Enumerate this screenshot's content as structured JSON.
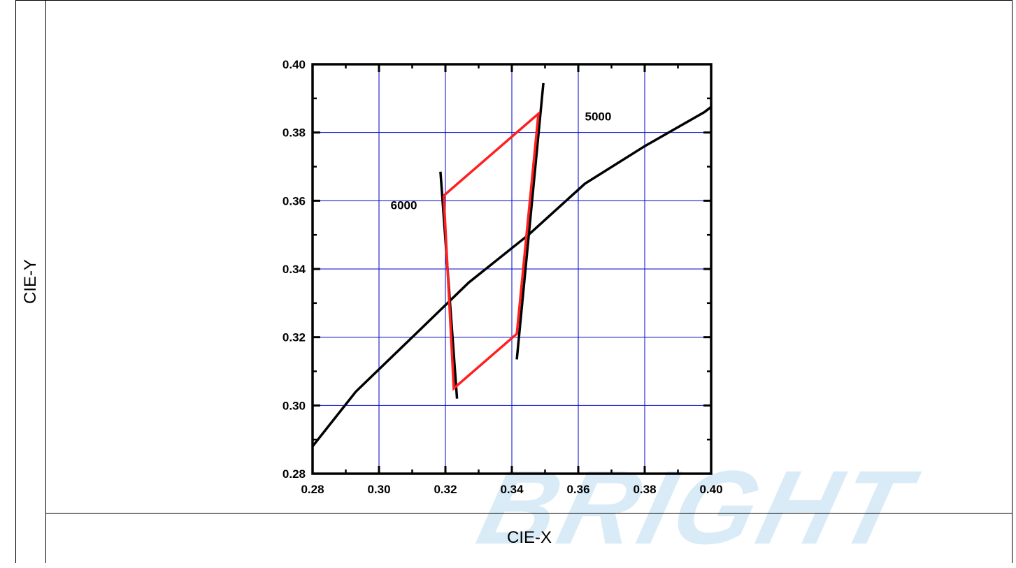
{
  "watermark": "BRIGHT",
  "chart_data": {
    "type": "line",
    "title": "",
    "xlabel": "CIE-X",
    "ylabel": "CIE-Y",
    "xlim": [
      0.28,
      0.4
    ],
    "ylim": [
      0.28,
      0.4
    ],
    "x_ticks": [
      "0.28",
      "0.30",
      "0.32",
      "0.34",
      "0.36",
      "0.38",
      "0.40"
    ],
    "y_ticks": [
      "0.28",
      "0.30",
      "0.32",
      "0.34",
      "0.36",
      "0.38",
      "0.40"
    ],
    "grid": true,
    "grid_color": "#0000cc",
    "annotations": [
      {
        "text": "5000",
        "x": 0.362,
        "y": 0.3835
      },
      {
        "text": "6000",
        "x": 0.3035,
        "y": 0.3575
      }
    ],
    "series": [
      {
        "color": "#000000",
        "x": [
          0.28,
          0.293,
          0.31,
          0.327,
          0.345,
          0.362,
          0.38,
          0.398,
          0.4
        ],
        "y": [
          0.288,
          0.304,
          0.32,
          0.336,
          0.35,
          0.365,
          0.376,
          0.386,
          0.3875
        ]
      },
      {
        "color": "#000000",
        "x": [
          0.3185,
          0.3235
        ],
        "y": [
          0.3685,
          0.302
        ]
      },
      {
        "color": "#000000",
        "x": [
          0.3495,
          0.3415
        ],
        "y": [
          0.3945,
          0.3135
        ]
      },
      {
        "color": "#ff2020",
        "x": [
          0.3195,
          0.348,
          0.3415,
          0.3225,
          0.3195
        ],
        "y": [
          0.3615,
          0.3855,
          0.321,
          0.305,
          0.3615
        ]
      }
    ]
  }
}
